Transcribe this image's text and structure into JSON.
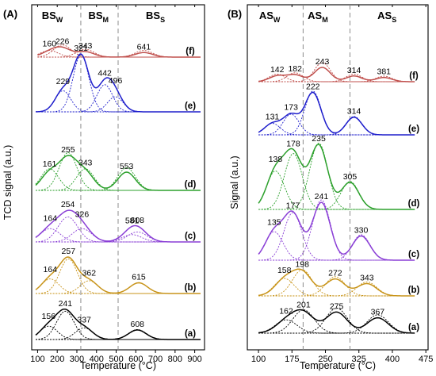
{
  "chart_data": [
    {
      "type": "line",
      "panel_label": "(A)",
      "xlabel": "Temperature (°C)",
      "ylabel": "TCD signal (a.u.)",
      "xlim": [
        70,
        950
      ],
      "xticks": [
        100,
        200,
        300,
        400,
        500,
        600,
        700,
        800,
        900
      ],
      "x_tick_labels": [
        "100",
        "200",
        "300",
        "400",
        "500",
        "600",
        "700",
        "800",
        "900"
      ],
      "regions": [
        {
          "main": "BS",
          "sub": "W",
          "x": 175
        },
        {
          "main": "BS",
          "sub": "M",
          "x": 410
        },
        {
          "main": "BS",
          "sub": "S",
          "x": 700
        }
      ],
      "region_boundaries": [
        320,
        510
      ],
      "series": [
        {
          "label": "(f)",
          "color": "#c0504d",
          "x_start": 100,
          "x_end": 930,
          "peaks": [
            160,
            226,
            343,
            641
          ]
        },
        {
          "label": "(e)",
          "color": "#1f1fcc",
          "x_start": 90,
          "x_end": 930,
          "peaks": [
            229,
            321,
            442,
            496
          ]
        },
        {
          "label": "(d)",
          "color": "#2ca02c",
          "x_start": 90,
          "x_end": 930,
          "peaks": [
            161,
            255,
            343,
            553
          ]
        },
        {
          "label": "(c)",
          "color": "#8a3fd6",
          "x_start": 90,
          "x_end": 930,
          "peaks": [
            164,
            254,
            326,
            581,
            608
          ]
        },
        {
          "label": "(b)",
          "color": "#c8941a",
          "x_start": 90,
          "x_end": 930,
          "peaks": [
            164,
            257,
            362,
            615
          ]
        },
        {
          "label": "(a)",
          "color": "#000000",
          "x_start": 90,
          "x_end": 930,
          "peaks": [
            156,
            241,
            337,
            608
          ]
        }
      ]
    },
    {
      "type": "line",
      "panel_label": "(B)",
      "xlabel": "Temperature (°C)",
      "ylabel": "Signal (a.u.)",
      "xlim": [
        75,
        480
      ],
      "xticks": [
        100,
        175,
        250,
        325,
        400,
        475
      ],
      "x_tick_labels": [
        "100",
        "175",
        "250",
        "325",
        "400",
        "475"
      ],
      "regions": [
        {
          "main": "AS",
          "sub": "W",
          "x": 125
        },
        {
          "main": "AS",
          "sub": "M",
          "x": 233
        },
        {
          "main": "AS",
          "sub": "S",
          "x": 388
        }
      ],
      "region_boundaries": [
        200,
        305
      ],
      "series": [
        {
          "label": "(f)",
          "color": "#c0504d",
          "x_start": 100,
          "x_end": 450,
          "peaks": [
            142,
            182,
            243,
            314,
            381
          ]
        },
        {
          "label": "(e)",
          "color": "#1f1fcc",
          "x_start": 100,
          "x_end": 450,
          "peaks": [
            131,
            173,
            222,
            314
          ]
        },
        {
          "label": "(d)",
          "color": "#2ca02c",
          "x_start": 100,
          "x_end": 450,
          "peaks": [
            138,
            178,
            235,
            305
          ]
        },
        {
          "label": "(c)",
          "color": "#8a3fd6",
          "x_start": 100,
          "x_end": 450,
          "peaks": [
            135,
            177,
            241,
            330
          ]
        },
        {
          "label": "(b)",
          "color": "#c8941a",
          "x_start": 100,
          "x_end": 450,
          "peaks": [
            158,
            198,
            272,
            343
          ]
        },
        {
          "label": "(a)",
          "color": "#000000",
          "x_start": 100,
          "x_end": 450,
          "peaks": [
            162,
            201,
            275,
            367
          ]
        }
      ]
    }
  ]
}
